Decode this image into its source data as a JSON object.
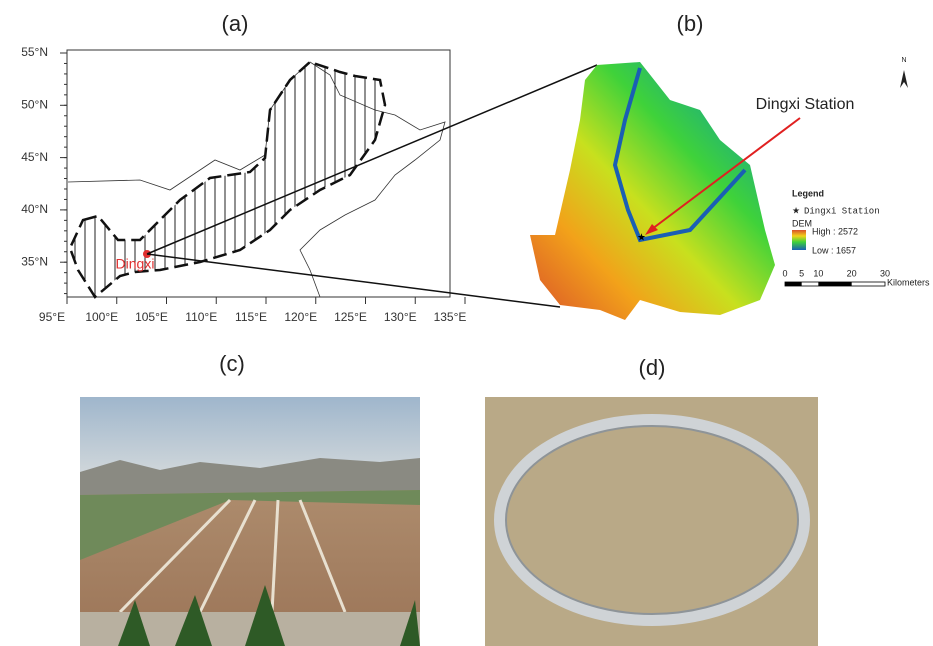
{
  "panels": {
    "a": "(a)",
    "b": "(b)",
    "c": "(c)",
    "d": "(d)"
  },
  "map_a": {
    "lat_labels": [
      "55°N",
      "50°N",
      "45°N",
      "40°N",
      "35°N"
    ],
    "lon_labels": [
      "95°E",
      "100°E",
      "105°E",
      "110°E",
      "115°E",
      "120°E",
      "125°E",
      "130°E",
      "135°E"
    ],
    "site": "Dingxi"
  },
  "map_b": {
    "station": "Dingxi Station",
    "north": "N",
    "legend": {
      "title": "Legend",
      "point": "Dingxi Station",
      "dem": "DEM",
      "high": "High : 2572",
      "low": "Low : 1657"
    },
    "scale": {
      "labels": [
        "0",
        "5",
        "10",
        "20",
        "30"
      ],
      "unit": "Kilometers"
    }
  }
}
